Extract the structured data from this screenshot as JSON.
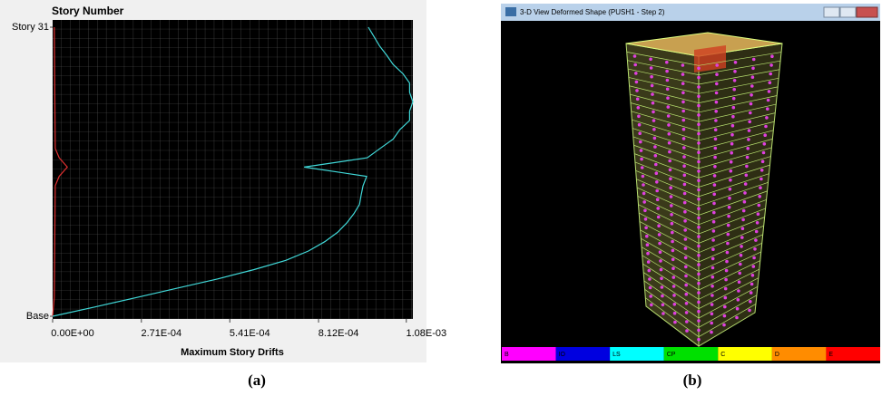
{
  "chart_data": {
    "type": "line",
    "title": "Story Number",
    "x_label": "Maximum Story Drifts",
    "xlim": [
      0,
      0.0011
    ],
    "ylim": [
      0,
      31
    ],
    "xticks": [
      {
        "value": 0,
        "label": "0.00E+00"
      },
      {
        "value": 0.000271,
        "label": "2.71E-04"
      },
      {
        "value": 0.000541,
        "label": "5.41E-04"
      },
      {
        "value": 0.000812,
        "label": "8.12E-04"
      },
      {
        "value": 0.00108,
        "label": "1.08E-03"
      }
    ],
    "yticks": [
      {
        "value": 31,
        "label": "Story 31"
      },
      {
        "value": 0,
        "label": "Base"
      }
    ],
    "series": [
      {
        "color": "#e03030",
        "x": [
          0,
          5e-06,
          8e-06,
          2e-05,
          4.5e-05,
          2e-05,
          8e-06,
          5e-06
        ],
        "values": [
          0,
          2,
          14,
          15,
          16,
          17,
          18,
          31
        ]
      },
      {
        "color": "#40d8d8",
        "x": [
          0,
          0.00013,
          0.000255,
          0.00038,
          0.000504,
          0.000615,
          0.000712,
          0.000781,
          0.000831,
          0.00087,
          0.000898,
          0.00092,
          0.000937,
          0.000942,
          0.000948,
          0.000959,
          0.000768,
          0.000961,
          0.001,
          0.00104,
          0.00106,
          0.00109,
          0.00109,
          0.0011,
          0.00109,
          0.00109,
          0.00107,
          0.00104,
          0.00102,
          0.000998,
          0.000981,
          0.000964
        ],
        "values": [
          0,
          1,
          2,
          3,
          4,
          5,
          6,
          7,
          8,
          9,
          10,
          11,
          12,
          13,
          14,
          15,
          16,
          17,
          18,
          19,
          20,
          21,
          22,
          23,
          24,
          25,
          26,
          27,
          28,
          29,
          30,
          31
        ]
      }
    ]
  },
  "screenshot": {
    "title": "3-D View  Deformed Shape (PUSH1 - Step 2)",
    "legend": [
      {
        "label": "B",
        "color": "#ff00ff"
      },
      {
        "label": "IO",
        "color": "#0000e0"
      },
      {
        "label": "LS",
        "color": "#00ffff"
      },
      {
        "label": "CP",
        "color": "#00e000"
      },
      {
        "label": "C",
        "color": "#ffff00"
      },
      {
        "label": "D",
        "color": "#ff8c00"
      },
      {
        "label": "E",
        "color": "#ff0000"
      }
    ]
  },
  "captions": [
    "(a)",
    "(b)"
  ]
}
